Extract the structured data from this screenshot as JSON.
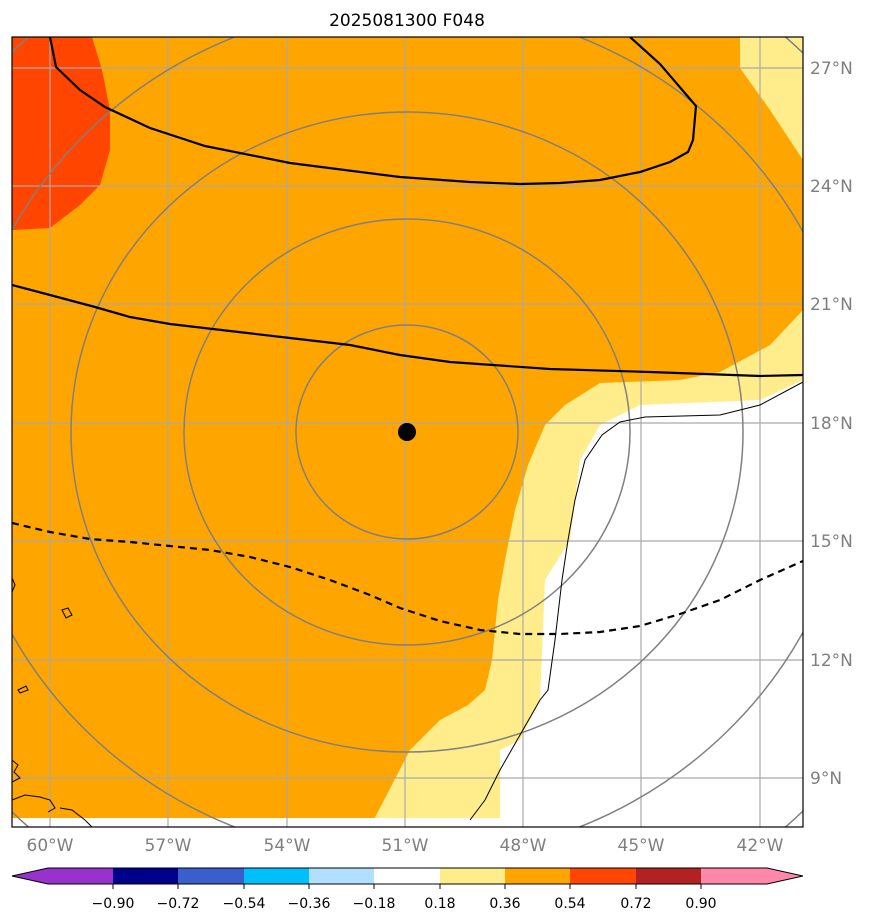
{
  "title": "2025081300 F048",
  "map": {
    "lon_labels": [
      "60°W",
      "57°W",
      "54°W",
      "51°W",
      "48°W",
      "45°W",
      "42°W"
    ],
    "lat_labels": [
      "27°N",
      "24°N",
      "21°N",
      "18°N",
      "15°N",
      "12°N",
      "9°N"
    ],
    "lon_range": [
      -61,
      -41
    ],
    "lat_range": [
      8,
      27.7
    ],
    "center_point": {
      "lon": -51,
      "lat": 17.8
    },
    "ring_color": "#808080",
    "grid_color": "#a9a9a9"
  },
  "colorbar": {
    "colors": [
      "#9932cc",
      "#00008b",
      "#3a5fcd",
      "#00bfff",
      "#b2dfff",
      "#ffffff",
      "#ffec8b",
      "#ffa500",
      "#ff4500",
      "#b22222",
      "#ff88aa"
    ],
    "tick_labels": [
      "−0.90",
      "−0.72",
      "−0.54",
      "−0.36",
      "−0.18",
      "0.18",
      "0.36",
      "0.54",
      "0.72",
      "0.90"
    ],
    "extend": "both"
  }
}
